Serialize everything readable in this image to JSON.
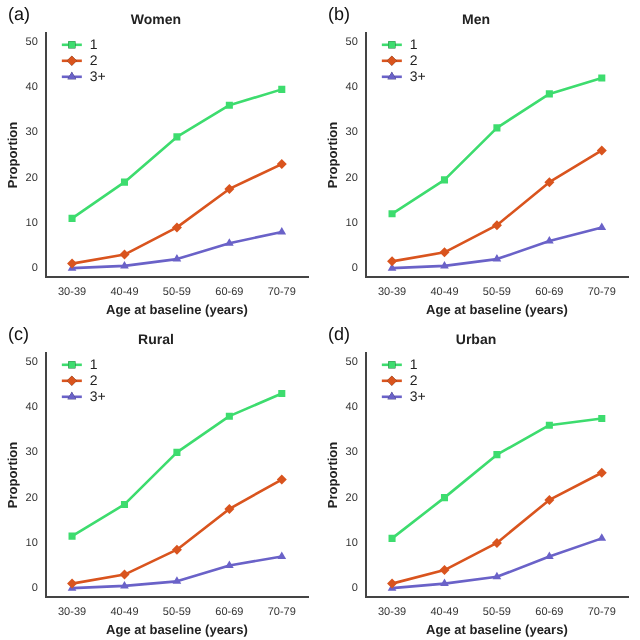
{
  "chart_data": [
    {
      "type": "line",
      "title": "Women",
      "annotations": [
        "(a)"
      ],
      "xlabel": "Age at baseline (years)",
      "ylabel": "Proportion",
      "categories": [
        "30-39",
        "40-49",
        "50-59",
        "60-69",
        "70-79"
      ],
      "ylim": [
        -2,
        52
      ],
      "yticks": [
        0,
        10,
        20,
        30,
        40,
        50
      ],
      "grid": false,
      "legend": "top left",
      "series": [
        {
          "name": "1",
          "color": "#3ddc6e",
          "marker": "square",
          "values": [
            11,
            19,
            29,
            36,
            39.5
          ]
        },
        {
          "name": "2",
          "color": "#d9541e",
          "marker": "diamond",
          "values": [
            1,
            3,
            9,
            17.5,
            23
          ]
        },
        {
          "name": "3+",
          "color": "#6a62c8",
          "marker": "triangle",
          "values": [
            0,
            0.5,
            2,
            5.5,
            8
          ]
        }
      ]
    },
    {
      "type": "line",
      "title": "Men",
      "annotations": [
        "(b)"
      ],
      "xlabel": "Age at baseline (years)",
      "ylabel": "Proportion",
      "categories": [
        "30-39",
        "40-49",
        "50-59",
        "60-69",
        "70-79"
      ],
      "ylim": [
        -2,
        52
      ],
      "yticks": [
        0,
        10,
        20,
        30,
        40,
        50
      ],
      "grid": false,
      "legend": "top left",
      "series": [
        {
          "name": "1",
          "color": "#3ddc6e",
          "marker": "square",
          "values": [
            12,
            19.5,
            31,
            38.5,
            42
          ]
        },
        {
          "name": "2",
          "color": "#d9541e",
          "marker": "diamond",
          "values": [
            1.5,
            3.5,
            9.5,
            19,
            26
          ]
        },
        {
          "name": "3+",
          "color": "#6a62c8",
          "marker": "triangle",
          "values": [
            0,
            0.5,
            2,
            6,
            9
          ]
        }
      ]
    },
    {
      "type": "line",
      "title": "Rural",
      "annotations": [
        "(c)"
      ],
      "xlabel": "Age at baseline (years)",
      "ylabel": "Proportion",
      "categories": [
        "30-39",
        "40-49",
        "50-59",
        "60-69",
        "70-79"
      ],
      "ylim": [
        -2,
        52
      ],
      "yticks": [
        0,
        10,
        20,
        30,
        40,
        50
      ],
      "grid": false,
      "legend": "top left",
      "series": [
        {
          "name": "1",
          "color": "#3ddc6e",
          "marker": "square",
          "values": [
            11.5,
            18.5,
            30,
            38,
            43
          ]
        },
        {
          "name": "2",
          "color": "#d9541e",
          "marker": "diamond",
          "values": [
            1,
            3,
            8.5,
            17.5,
            24
          ]
        },
        {
          "name": "3+",
          "color": "#6a62c8",
          "marker": "triangle",
          "values": [
            0,
            0.5,
            1.5,
            5,
            7
          ]
        }
      ]
    },
    {
      "type": "line",
      "title": "Urban",
      "annotations": [
        "(d)"
      ],
      "xlabel": "Age at baseline (years)",
      "ylabel": "Proportion",
      "categories": [
        "30-39",
        "40-49",
        "50-59",
        "60-69",
        "70-79"
      ],
      "ylim": [
        -2,
        52
      ],
      "yticks": [
        0,
        10,
        20,
        30,
        40,
        50
      ],
      "grid": false,
      "legend": "top left",
      "series": [
        {
          "name": "1",
          "color": "#3ddc6e",
          "marker": "square",
          "values": [
            11,
            20,
            29.5,
            36,
            37.5
          ]
        },
        {
          "name": "2",
          "color": "#d9541e",
          "marker": "diamond",
          "values": [
            1,
            4,
            10,
            19.5,
            25.5
          ]
        },
        {
          "name": "3+",
          "color": "#6a62c8",
          "marker": "triangle",
          "values": [
            0,
            1,
            2.5,
            7,
            11
          ]
        }
      ]
    }
  ]
}
